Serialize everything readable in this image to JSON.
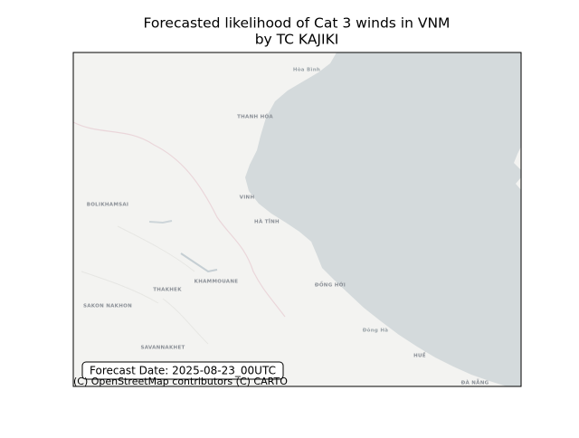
{
  "title_lines": [
    "Forecasted likelihood of Cat 3 winds in VNM",
    "by TC KAJIKI"
  ],
  "map_labels": [
    "Hòa Bình",
    "THANH HÓA",
    "VINH",
    "HÀ TĨNH",
    "BOLIKHAMSAI",
    "KHAMMOUANE",
    "THAKHEK",
    "SAKON NAKHON",
    "SAVANNAKHET",
    "ĐỒNG HỚI",
    "Đông Hà",
    "HUẾ",
    "ĐÀ NẴNG"
  ],
  "forecast_date": "Forecast Date: 2025-08-23_00UTC",
  "attribution": "(C) OpenStreetMap contributors (C) CARTO"
}
